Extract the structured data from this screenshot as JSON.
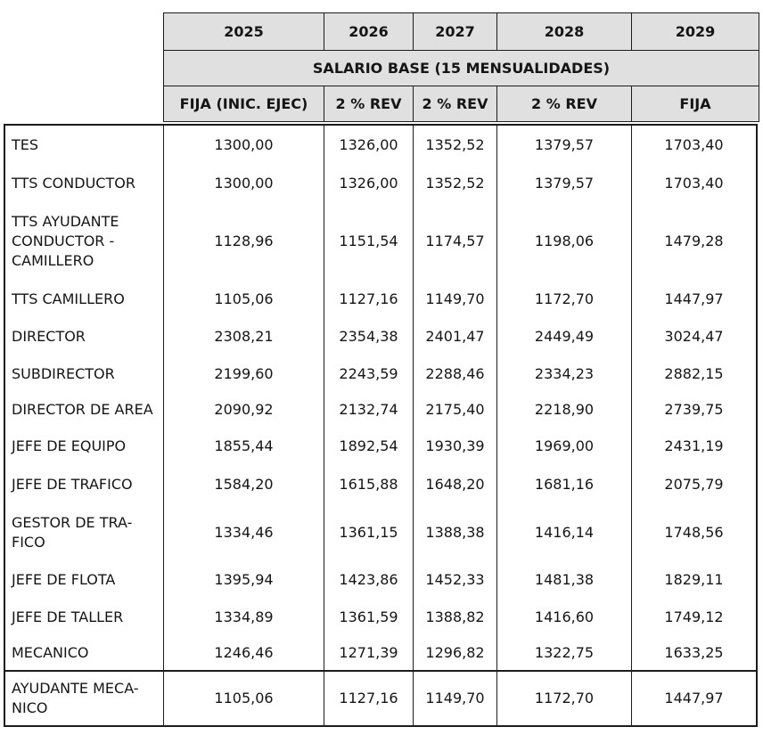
{
  "table": {
    "years": [
      "2025",
      "2026",
      "2027",
      "2028",
      "2029"
    ],
    "group_title": "SALARIO BASE (15 MENSUALIDADES)",
    "col_subheaders": [
      "FIJA (INIC. EJEC)",
      "2 % REV",
      "2 % REV",
      "2 % REV",
      "FIJA"
    ],
    "rows": [
      {
        "label": "TES",
        "values": [
          "1300,00",
          "1326,00",
          "1352,52",
          "1379,57",
          "1703,40"
        ]
      },
      {
        "label": "TTS CONDUCTOR",
        "values": [
          "1300,00",
          "1326,00",
          "1352,52",
          "1379,57",
          "1703,40"
        ]
      },
      {
        "label": "TTS AYUDANTE\nCONDUCTOR -\nCAMILLERO",
        "values": [
          "1128,96",
          "1151,54",
          "1174,57",
          "1198,06",
          "1479,28"
        ]
      },
      {
        "label": "TTS CAMILLERO",
        "values": [
          "1105,06",
          "1127,16",
          "1149,70",
          "1172,70",
          "1447,97"
        ]
      },
      {
        "label": "DIRECTOR",
        "values": [
          "2308,21",
          "2354,38",
          "2401,47",
          "2449,49",
          "3024,47"
        ]
      },
      {
        "label": "SUBDIRECTOR",
        "values": [
          "2199,60",
          "2243,59",
          "2288,46",
          "2334,23",
          "2882,15"
        ]
      },
      {
        "label": "DIRECTOR DE AREA",
        "values": [
          "2090,92",
          "2132,74",
          "2175,40",
          "2218,90",
          "2739,75"
        ]
      },
      {
        "label": "JEFE DE EQUIPO",
        "values": [
          "1855,44",
          "1892,54",
          "1930,39",
          "1969,00",
          "2431,19"
        ]
      },
      {
        "label": "JEFE DE TRAFICO",
        "values": [
          "1584,20",
          "1615,88",
          "1648,20",
          "1681,16",
          "2075,79"
        ]
      },
      {
        "label": "GESTOR DE TRA-\nFICO",
        "values": [
          "1334,46",
          "1361,15",
          "1388,38",
          "1416,14",
          "1748,56"
        ]
      },
      {
        "label": "JEFE DE FLOTA",
        "values": [
          "1395,94",
          "1423,86",
          "1452,33",
          "1481,38",
          "1829,11"
        ]
      },
      {
        "label": "JEFE DE TALLER",
        "values": [
          "1334,89",
          "1361,59",
          "1388,82",
          "1416,60",
          "1749,12"
        ]
      },
      {
        "label": "MECANICO",
        "values": [
          "1246,46",
          "1271,39",
          "1296,82",
          "1322,75",
          "1633,25"
        ]
      },
      {
        "label": "AYUDANTE MECA-\nNICO",
        "values": [
          "1105,06",
          "1127,16",
          "1149,70",
          "1172,70",
          "1447,97"
        ]
      }
    ]
  },
  "colors": {
    "header_bg": "#e0e0e0",
    "border": "#1c1c1c",
    "text": "#151515",
    "page_bg": "#ffffff"
  }
}
